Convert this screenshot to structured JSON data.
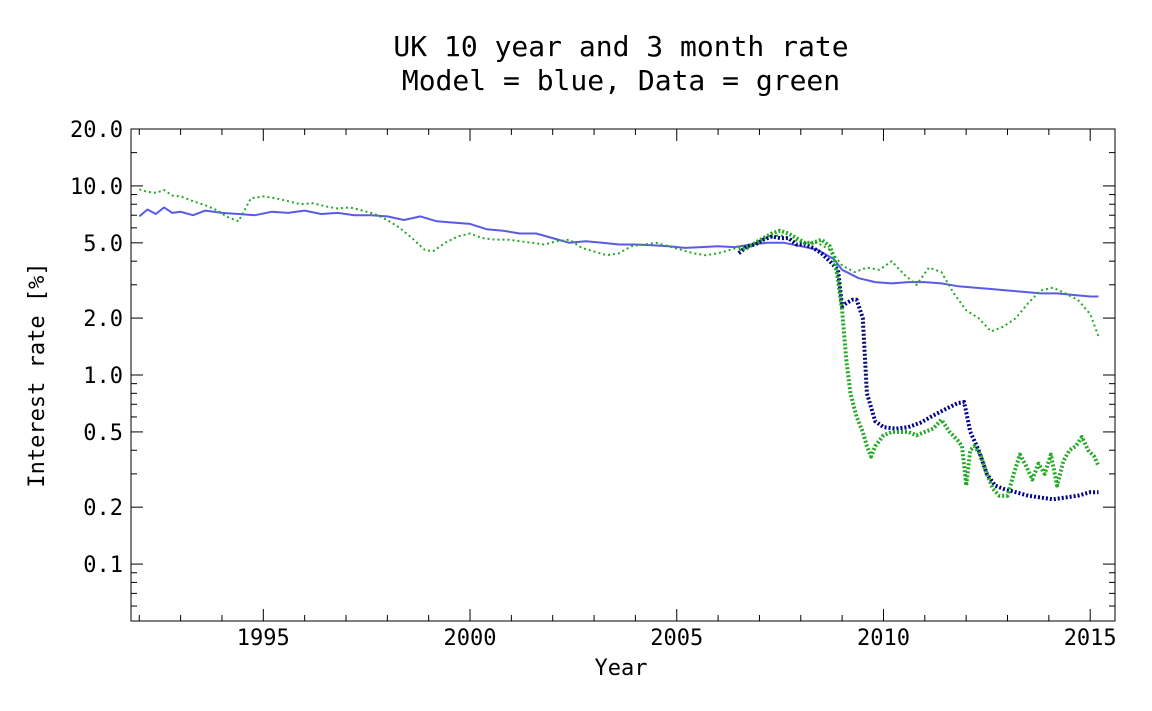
{
  "chart_data": {
    "type": "line",
    "title": "UK 10 year and 3 month rate",
    "subtitle": "Model = blue, Data = green",
    "xlabel": "Year",
    "ylabel": "Interest rate [%]",
    "xlim": [
      1991.8,
      2015.6
    ],
    "ylim": [
      0.05,
      20.0
    ],
    "yscale": "log",
    "x_ticks": [
      1995,
      2000,
      2005,
      2010,
      2015
    ],
    "x_tick_labels": [
      "1995",
      "2000",
      "2005",
      "2010",
      "2015"
    ],
    "y_ticks": [
      20.0,
      10.0,
      5.0,
      2.0,
      1.0,
      0.5,
      0.2,
      0.1
    ],
    "y_tick_labels": [
      "20.0",
      "10.0",
      "5.0",
      "2.0",
      "1.0",
      "0.5",
      "0.2",
      "0.1"
    ],
    "grid": false,
    "legend": "none",
    "colors": {
      "model_10y": "#5a5ae6",
      "data_10y": "#22aa22",
      "model_3m": "#00008b",
      "data_3m": "#22aa22"
    },
    "series": [
      {
        "key": "model_10y",
        "x": [
          1992.0,
          1992.2,
          1992.4,
          1992.6,
          1992.8,
          1993.0,
          1993.3,
          1993.6,
          1994.0,
          1994.4,
          1994.8,
          1995.2,
          1995.6,
          1996.0,
          1996.4,
          1996.8,
          1997.2,
          1997.6,
          1998.0,
          1998.4,
          1998.8,
          1999.2,
          1999.6,
          2000.0,
          2000.4,
          2000.8,
          2001.2,
          2001.6,
          2002.0,
          2002.4,
          2002.8,
          2003.2,
          2003.6,
          2004.0,
          2004.4,
          2004.8,
          2005.2,
          2005.6,
          2006.0,
          2006.4,
          2006.8,
          2007.2,
          2007.6,
          2008.0,
          2008.4,
          2008.8,
          2009.0,
          2009.4,
          2009.8,
          2010.2,
          2010.6,
          2011.0,
          2011.4,
          2011.8,
          2012.2,
          2012.6,
          2013.0,
          2013.4,
          2013.8,
          2014.2,
          2014.6,
          2015.0,
          2015.2
        ],
        "y": [
          6.9,
          7.5,
          7.1,
          7.7,
          7.2,
          7.3,
          7.0,
          7.4,
          7.2,
          7.1,
          7.0,
          7.3,
          7.2,
          7.4,
          7.1,
          7.2,
          7.0,
          7.0,
          6.9,
          6.6,
          6.9,
          6.5,
          6.4,
          6.3,
          5.9,
          5.8,
          5.6,
          5.6,
          5.3,
          5.0,
          5.1,
          5.0,
          4.9,
          4.9,
          4.85,
          4.8,
          4.7,
          4.75,
          4.8,
          4.75,
          4.9,
          5.0,
          5.0,
          4.8,
          4.6,
          4.1,
          3.6,
          3.25,
          3.1,
          3.05,
          3.1,
          3.1,
          3.05,
          2.95,
          2.9,
          2.85,
          2.8,
          2.75,
          2.7,
          2.7,
          2.65,
          2.6,
          2.6
        ]
      },
      {
        "key": "data_10y",
        "x": [
          1992.0,
          1992.2,
          1992.4,
          1992.6,
          1992.8,
          1993.0,
          1993.3,
          1993.6,
          1993.9,
          1994.1,
          1994.4,
          1994.7,
          1995.0,
          1995.3,
          1995.6,
          1995.9,
          1996.2,
          1996.5,
          1996.8,
          1997.1,
          1997.4,
          1997.7,
          1998.0,
          1998.3,
          1998.6,
          1998.9,
          1999.1,
          1999.4,
          1999.7,
          2000.0,
          2000.3,
          2000.6,
          2000.9,
          2001.2,
          2001.5,
          2001.8,
          2002.1,
          2002.4,
          2002.7,
          2003.0,
          2003.3,
          2003.6,
          2003.9,
          2004.2,
          2004.5,
          2004.8,
          2005.1,
          2005.4,
          2005.7,
          2006.0,
          2006.3,
          2006.6,
          2006.9,
          2007.2,
          2007.5,
          2007.8,
          2008.1,
          2008.4,
          2008.7,
          2009.0,
          2009.3,
          2009.6,
          2009.9,
          2010.2,
          2010.5,
          2010.8,
          2011.1,
          2011.4,
          2011.7,
          2012.0,
          2012.3,
          2012.6,
          2012.9,
          2013.2,
          2013.5,
          2013.8,
          2014.1,
          2014.4,
          2014.7,
          2015.0,
          2015.2
        ],
        "y": [
          9.6,
          9.3,
          9.2,
          9.5,
          8.9,
          8.8,
          8.3,
          7.9,
          7.4,
          6.9,
          6.5,
          8.6,
          8.8,
          8.6,
          8.3,
          8.0,
          8.1,
          7.8,
          7.6,
          7.7,
          7.4,
          7.1,
          6.6,
          6.0,
          5.3,
          4.6,
          4.5,
          5.0,
          5.4,
          5.6,
          5.3,
          5.2,
          5.2,
          5.1,
          5.0,
          4.9,
          5.1,
          5.2,
          4.7,
          4.5,
          4.3,
          4.4,
          4.8,
          4.9,
          5.0,
          4.8,
          4.6,
          4.4,
          4.3,
          4.4,
          4.6,
          4.8,
          4.9,
          5.3,
          5.5,
          5.2,
          5.0,
          5.0,
          4.6,
          3.8,
          3.5,
          3.7,
          3.6,
          4.0,
          3.4,
          3.0,
          3.7,
          3.5,
          2.7,
          2.2,
          2.0,
          1.7,
          1.8,
          2.0,
          2.4,
          2.8,
          2.9,
          2.7,
          2.5,
          2.1,
          1.6
        ]
      },
      {
        "key": "model_3m",
        "x": [
          2006.5,
          2006.7,
          2006.9,
          2007.1,
          2007.3,
          2007.5,
          2007.7,
          2007.9,
          2008.1,
          2008.3,
          2008.5,
          2008.7,
          2008.9,
          2009.0,
          2009.1,
          2009.25,
          2009.35,
          2009.5,
          2009.6,
          2009.8,
          2010.0,
          2010.3,
          2010.6,
          2010.9,
          2011.2,
          2011.5,
          2011.8,
          2011.95,
          2012.1,
          2012.3,
          2012.5,
          2012.7,
          2012.9,
          2013.2,
          2013.5,
          2013.8,
          2014.1,
          2014.4,
          2014.7,
          2015.0,
          2015.2
        ],
        "y": [
          4.4,
          4.8,
          4.9,
          5.2,
          5.4,
          5.3,
          5.3,
          4.9,
          4.9,
          4.7,
          4.4,
          4.0,
          3.6,
          2.3,
          2.4,
          2.5,
          2.5,
          2.0,
          0.8,
          0.57,
          0.53,
          0.52,
          0.53,
          0.56,
          0.61,
          0.66,
          0.71,
          0.72,
          0.5,
          0.4,
          0.3,
          0.26,
          0.25,
          0.24,
          0.23,
          0.225,
          0.22,
          0.225,
          0.23,
          0.24,
          0.24
        ]
      },
      {
        "key": "data_3m",
        "x": [
          2006.5,
          2006.7,
          2006.9,
          2007.1,
          2007.3,
          2007.5,
          2007.7,
          2007.9,
          2008.1,
          2008.3,
          2008.5,
          2008.7,
          2008.8,
          2008.9,
          2009.0,
          2009.1,
          2009.2,
          2009.35,
          2009.5,
          2009.6,
          2009.7,
          2009.8,
          2010.0,
          2010.2,
          2010.4,
          2010.6,
          2010.8,
          2011.0,
          2011.2,
          2011.4,
          2011.6,
          2011.8,
          2011.9,
          2012.0,
          2012.1,
          2012.2,
          2012.35,
          2012.5,
          2012.65,
          2012.8,
          2013.0,
          2013.15,
          2013.3,
          2013.45,
          2013.6,
          2013.75,
          2013.9,
          2014.05,
          2014.2,
          2014.35,
          2014.5,
          2014.65,
          2014.8,
          2014.95,
          2015.1,
          2015.2
        ],
        "y": [
          4.6,
          4.7,
          5.0,
          5.3,
          5.6,
          5.8,
          5.6,
          5.3,
          5.0,
          5.0,
          5.2,
          4.8,
          4.2,
          3.2,
          2.2,
          1.2,
          0.8,
          0.6,
          0.5,
          0.42,
          0.37,
          0.42,
          0.48,
          0.5,
          0.5,
          0.5,
          0.48,
          0.5,
          0.52,
          0.58,
          0.5,
          0.45,
          0.42,
          0.26,
          0.4,
          0.42,
          0.38,
          0.3,
          0.25,
          0.23,
          0.23,
          0.3,
          0.38,
          0.33,
          0.28,
          0.34,
          0.3,
          0.38,
          0.26,
          0.35,
          0.4,
          0.42,
          0.47,
          0.4,
          0.37,
          0.33
        ]
      }
    ]
  }
}
